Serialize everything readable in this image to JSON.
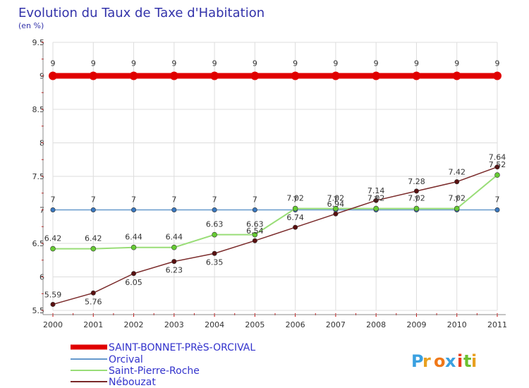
{
  "page": {
    "title": "Evolution du Taux de Taxe d'Habitation",
    "subtitle": "(en %)"
  },
  "brand": {
    "letters": [
      "P",
      "r",
      "o",
      "x",
      "i",
      "t",
      "i"
    ],
    "colors": [
      "#3aa0e0",
      "#e8a020",
      "#f07818",
      "#3aa0e0",
      "#e84020",
      "#6cc030",
      "#e8a020"
    ]
  },
  "chart_data": {
    "type": "line",
    "title": "Evolution du Taux de Taxe d'Habitation",
    "ylabel": "(en %)",
    "xlabel": "",
    "x": [
      "2000",
      "2001",
      "2002",
      "2003",
      "2004",
      "2005",
      "2006",
      "2007",
      "2008",
      "2009",
      "2010",
      "2011"
    ],
    "ylim": [
      5.5,
      9.5
    ],
    "yticks": [
      "5.5",
      "6",
      "6.5",
      "7",
      "7.5",
      "8",
      "8.5",
      "9",
      "9.5"
    ],
    "grid": true,
    "legend": "bottom-left",
    "series": [
      {
        "name": "SAINT-BONNET-PRèS-ORCIVAL",
        "color": "#e00000",
        "marker": "#e00000",
        "values": [
          9,
          9,
          9,
          9,
          9,
          9,
          9,
          9,
          9,
          9,
          9,
          9
        ],
        "labels": [
          "9",
          "9",
          "9",
          "9",
          "9",
          "9",
          "9",
          "9",
          "9",
          "9",
          "9",
          "9"
        ]
      },
      {
        "name": "Orcival",
        "color": "#6699cc",
        "marker": "#3a78c0",
        "values": [
          7,
          7,
          7,
          7,
          7,
          7,
          7,
          7,
          7,
          7,
          7,
          7
        ],
        "labels": [
          "7",
          "7",
          "7",
          "7",
          "7",
          "7",
          "7",
          "7",
          "7",
          "7",
          "7",
          "7"
        ]
      },
      {
        "name": "Saint-Pierre-Roche",
        "color": "#99dd77",
        "marker": "#66cc33",
        "values": [
          6.42,
          6.42,
          6.44,
          6.44,
          6.63,
          6.63,
          7.02,
          7.02,
          7.02,
          7.02,
          7.02,
          7.52
        ],
        "labels": [
          "6.42",
          "6.42",
          "6.44",
          "6.44",
          "6.63",
          "6.63",
          "7.02",
          "7.02",
          "7.02",
          "7.02",
          "7.02",
          "7.52"
        ]
      },
      {
        "name": "Nébouzat",
        "color": "#7a2a2a",
        "marker": "#5a1010",
        "values": [
          5.59,
          5.76,
          6.05,
          6.23,
          6.35,
          6.54,
          6.74,
          6.94,
          7.14,
          7.28,
          7.42,
          7.64
        ],
        "labels": [
          "5.59",
          "5.76",
          "6.05",
          "6.23",
          "6.35",
          "6.54",
          "6.74",
          "6.94",
          "7.14",
          "7.28",
          "7.42",
          "7.64"
        ]
      }
    ]
  }
}
